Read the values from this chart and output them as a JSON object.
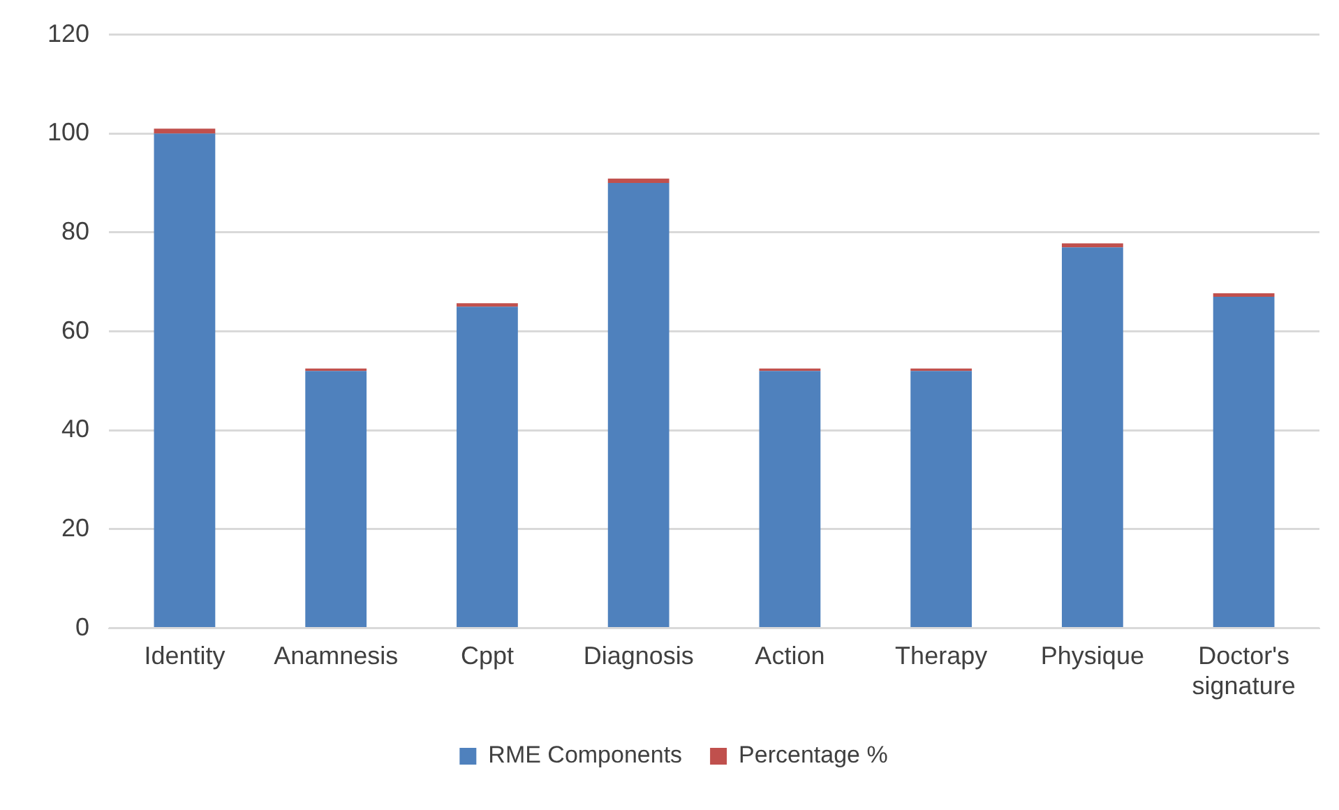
{
  "chart_data": {
    "type": "bar",
    "stacked": true,
    "categories": [
      "Identity",
      "Anamnesis",
      "Cppt",
      "Diagnosis",
      "Action",
      "Therapy",
      "Physique",
      "Doctor's signature"
    ],
    "series": [
      {
        "name": "RME Components",
        "color": "#4f81bd",
        "values": [
          100,
          52,
          65,
          90,
          52,
          52,
          77,
          67
        ]
      },
      {
        "name": "Percentage %",
        "color": "#c0504d",
        "values": [
          1,
          0.5,
          0.7,
          0.9,
          0.5,
          0.5,
          0.8,
          0.7
        ]
      }
    ],
    "ylim": [
      0,
      120
    ],
    "yticks": [
      0,
      20,
      40,
      60,
      80,
      100,
      120
    ],
    "grid": "y",
    "legend": "bottom"
  }
}
